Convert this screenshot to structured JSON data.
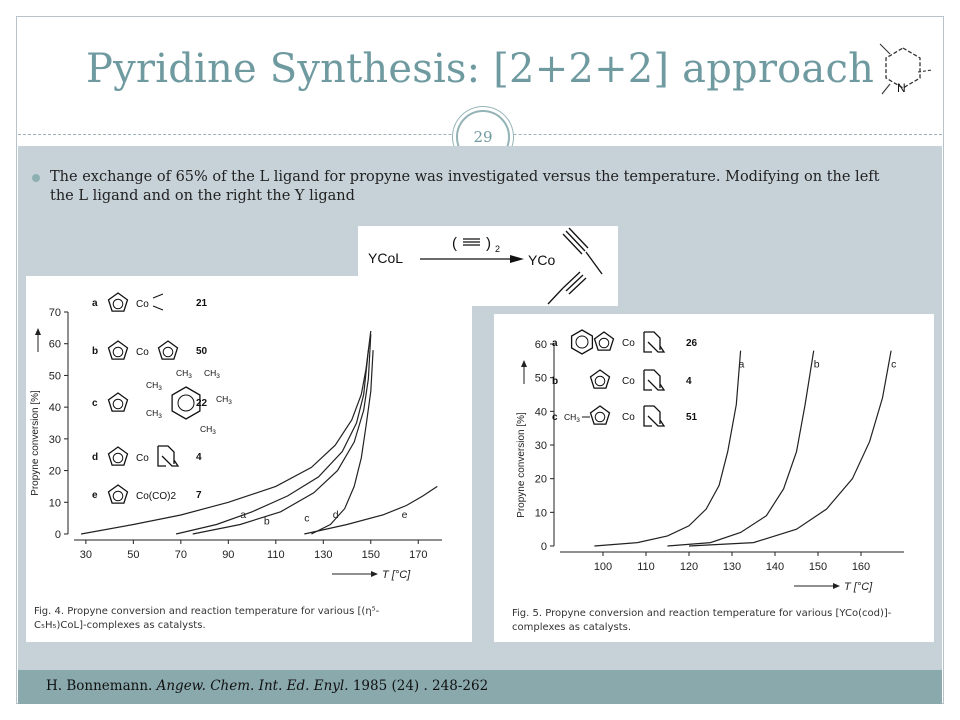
{
  "slide": {
    "title": "Pyridine Synthesis: [2+2+2] approach",
    "page_number": "29",
    "bullet": "The exchange of 65% of the L ligand for propyne was investigated versus the temperature. Modifying on the left the L ligand and on the right the Y ligand",
    "citation": {
      "author": "H. Bonnemann.",
      "journal": "Angew. Chem. Int. Ed. Enyl.",
      "details": "1985 (24) . 248-262"
    },
    "colors": {
      "title": "#6f9aa0",
      "content_bg": "#c6d1d8",
      "footer_bg": "#8aa9ad"
    },
    "logo_icon": "pyridine-ring-icon",
    "logo_label": "N"
  },
  "scheme": {
    "reactant": "YCoL",
    "reagent_open": "(",
    "reagent_close": ")",
    "reagent_subscript": "2",
    "product": "YCo"
  },
  "chart_data": [
    {
      "type": "line",
      "ylabel": "Propyne conversion [%]",
      "xlabel": "T [°C]",
      "xlim": [
        25,
        180
      ],
      "ylim": [
        0,
        70
      ],
      "xticks": [
        30,
        50,
        70,
        90,
        110,
        130,
        150,
        170
      ],
      "yticks": [
        0,
        10,
        20,
        30,
        40,
        50,
        60,
        70
      ],
      "legend": [
        {
          "key": "a",
          "ligand": "Co",
          "number": "21"
        },
        {
          "key": "b",
          "ligand": "Co",
          "number": "50"
        },
        {
          "key": "c",
          "ligand": "CH3 / CH3 / CH3 / CH3 / CH3 / CH3",
          "number": "22"
        },
        {
          "key": "d",
          "ligand": "Co",
          "number": "4"
        },
        {
          "key": "e",
          "ligand": "Co(CO)2",
          "number": "7"
        }
      ],
      "substituent": "CH",
      "substituent_sub": "3",
      "series": [
        {
          "name": "a",
          "x": [
            28,
            50,
            70,
            90,
            110,
            125,
            135,
            142,
            146,
            148,
            150
          ],
          "y": [
            0,
            3,
            6,
            10,
            15,
            21,
            28,
            36,
            44,
            52,
            64
          ]
        },
        {
          "name": "b",
          "x": [
            68,
            85,
            100,
            115,
            128,
            138,
            144,
            147,
            149
          ],
          "y": [
            0,
            3,
            7,
            12,
            18,
            26,
            35,
            44,
            58
          ]
        },
        {
          "name": "c",
          "x": [
            75,
            95,
            112,
            126,
            136,
            143,
            147,
            149,
            150
          ],
          "y": [
            0,
            3,
            7,
            13,
            20,
            29,
            39,
            49,
            63
          ]
        },
        {
          "name": "d",
          "x": [
            125,
            133,
            139,
            143,
            146,
            148,
            150,
            151
          ],
          "y": [
            0,
            3,
            8,
            15,
            24,
            34,
            45,
            58
          ]
        },
        {
          "name": "e",
          "x": [
            122,
            140,
            155,
            165,
            172,
            178
          ],
          "y": [
            0,
            3,
            6,
            9,
            12,
            15
          ]
        }
      ],
      "caption_line1": "Fig. 4. Propyne conversion and reaction temperature for various [(η⁵-",
      "caption_line2": "C₅H₅)CoL]-complexes as catalysts."
    },
    {
      "type": "line",
      "ylabel": "Propyne conversion [%]",
      "xlabel": "T [°C]",
      "xlim": [
        90,
        170
      ],
      "ylim": [
        0,
        60
      ],
      "xticks": [
        100,
        110,
        120,
        130,
        140,
        150,
        160
      ],
      "yticks": [
        0,
        10,
        20,
        30,
        40,
        50,
        60
      ],
      "legend": [
        {
          "key": "a",
          "ligand": "Co",
          "number": "26"
        },
        {
          "key": "b",
          "ligand": "Co",
          "number": "4"
        },
        {
          "key": "c",
          "ligand": "CH3 / Co",
          "number": "51"
        }
      ],
      "substituent": "CH",
      "substituent_sub": "3",
      "series": [
        {
          "name": "a",
          "x": [
            98,
            108,
            115,
            120,
            124,
            127,
            129,
            131,
            132
          ],
          "y": [
            0,
            1,
            3,
            6,
            11,
            18,
            28,
            42,
            58
          ]
        },
        {
          "name": "b",
          "x": [
            115,
            125,
            132,
            138,
            142,
            145,
            147,
            149
          ],
          "y": [
            0,
            1,
            4,
            9,
            17,
            28,
            42,
            58
          ]
        },
        {
          "name": "c",
          "x": [
            120,
            135,
            145,
            152,
            158,
            162,
            165,
            167
          ],
          "y": [
            0,
            1,
            5,
            11,
            20,
            31,
            44,
            58
          ]
        }
      ],
      "caption_line1": "Fig. 5. Propyne conversion and reaction temperature for various [YCo(cod)]-",
      "caption_line2": "complexes as catalysts."
    }
  ]
}
